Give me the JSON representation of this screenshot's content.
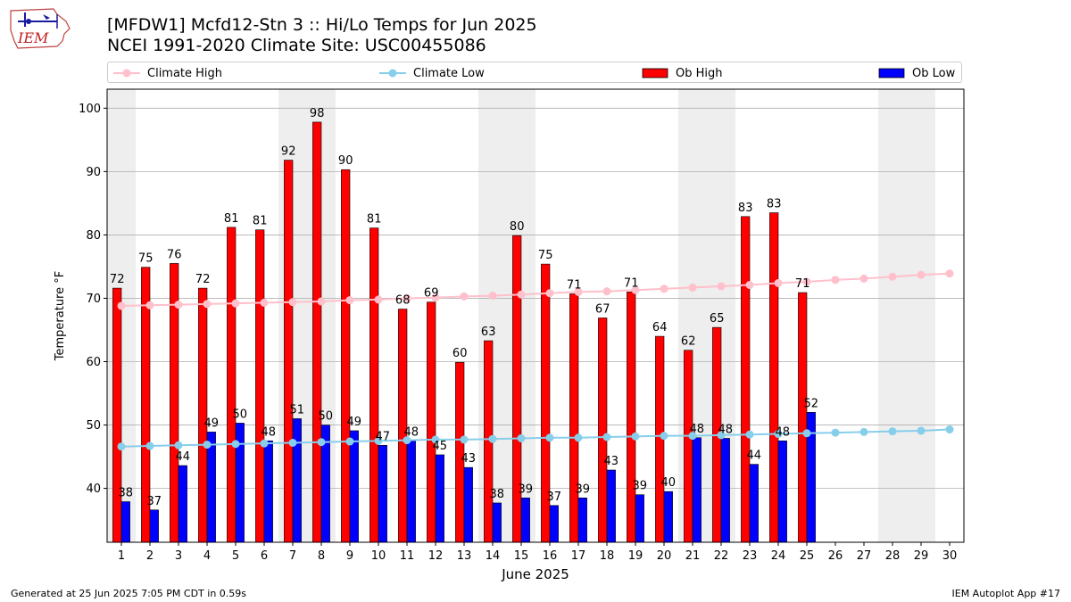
{
  "header": {
    "title_line1": "[MFDW1] Mcfd12-Stn 3 :: Hi/Lo Temps for Jun 2025",
    "title_line2": "NCEI 1991-2020 Climate Site: USC00455086",
    "logo_text": "IEM"
  },
  "footer": {
    "generated": "Generated at 25 Jun 2025 7:05 PM CDT in 0.59s",
    "app": "IEM Autoplot App #17"
  },
  "colors": {
    "climate_high": "#ffc0cb",
    "climate_low": "#87ceeb",
    "ob_high": "#ff0000",
    "ob_low": "#0000ff",
    "weekend_shade": "#eeeeee",
    "grid": "#b0b0b0"
  },
  "chart_data": {
    "type": "bar",
    "xlabel": "June 2025",
    "ylabel": "Temperature $^\\circ$F",
    "ylim": [
      31.5,
      103
    ],
    "yticks": [
      40,
      50,
      60,
      70,
      80,
      90,
      100
    ],
    "xlim": [
      0.5,
      30.5
    ],
    "days": [
      1,
      2,
      3,
      4,
      5,
      6,
      7,
      8,
      9,
      10,
      11,
      12,
      13,
      14,
      15,
      16,
      17,
      18,
      19,
      20,
      21,
      22,
      23,
      24,
      25,
      26,
      27,
      28,
      29,
      30
    ],
    "weekend_days": [
      1,
      7,
      8,
      14,
      15,
      21,
      22,
      28,
      29
    ],
    "grid": "horizontal",
    "legend_position": "top",
    "series": [
      {
        "name": "Climate High",
        "kind": "line",
        "values": [
          68.8,
          68.9,
          69.0,
          69.1,
          69.2,
          69.3,
          69.4,
          69.5,
          69.7,
          69.8,
          70.0,
          70.1,
          70.3,
          70.4,
          70.6,
          70.8,
          71.0,
          71.1,
          71.3,
          71.5,
          71.7,
          71.9,
          72.1,
          72.4,
          72.6,
          72.9,
          73.1,
          73.4,
          73.7,
          73.9
        ]
      },
      {
        "name": "Climate Low",
        "kind": "line",
        "values": [
          46.6,
          46.7,
          46.8,
          46.9,
          47.0,
          47.1,
          47.2,
          47.3,
          47.4,
          47.5,
          47.6,
          47.7,
          47.7,
          47.8,
          47.9,
          48.0,
          48.0,
          48.1,
          48.2,
          48.3,
          48.3,
          48.4,
          48.5,
          48.6,
          48.7,
          48.8,
          48.9,
          49.0,
          49.1,
          49.3
        ]
      },
      {
        "name": "Ob High",
        "kind": "bar",
        "values": [
          71.6,
          74.9,
          75.5,
          71.6,
          81.2,
          80.8,
          91.8,
          97.8,
          90.3,
          81.1,
          68.3,
          69.4,
          59.9,
          63.3,
          79.9,
          75.4,
          70.7,
          66.9,
          71.0,
          64.0,
          61.8,
          65.4,
          82.9,
          83.5,
          70.9
        ],
        "labels": [
          "72",
          "75",
          "76",
          "72",
          "81",
          "81",
          "92",
          "98",
          "90",
          "81",
          "68",
          "69",
          "60",
          "63",
          "80",
          "75",
          "71",
          "67",
          "71",
          "64",
          "62",
          "65",
          "83",
          "83",
          "71"
        ]
      },
      {
        "name": "Ob Low",
        "kind": "bar",
        "values": [
          37.9,
          36.6,
          43.6,
          48.9,
          50.3,
          47.5,
          51.0,
          50.0,
          49.1,
          46.8,
          47.5,
          45.3,
          43.3,
          37.7,
          38.5,
          37.3,
          38.5,
          42.9,
          39.0,
          39.5,
          48.0,
          47.9,
          43.8,
          47.5,
          52.0
        ],
        "labels": [
          "38",
          "37",
          "44",
          "49",
          "50",
          "48",
          "51",
          "50",
          "49",
          "47",
          "48",
          "45",
          "43",
          "38",
          "39",
          "37",
          "39",
          "43",
          "39",
          "40",
          "48",
          "48",
          "44",
          "48",
          "52"
        ]
      }
    ]
  }
}
